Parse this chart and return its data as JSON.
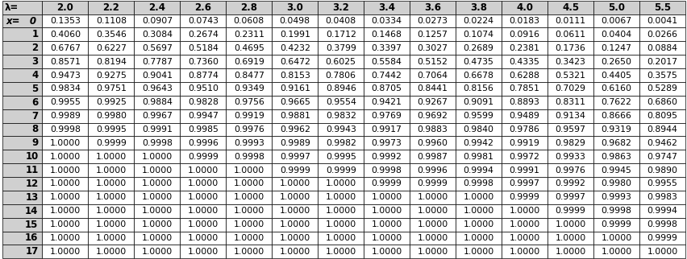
{
  "lambda_values": [
    "2.0",
    "2.2",
    "2.4",
    "2.6",
    "2.8",
    "3.0",
    "3.2",
    "3.4",
    "3.6",
    "3.8",
    "4.0",
    "4.5",
    "5.0",
    "5.5"
  ],
  "x_values": [
    0,
    1,
    2,
    3,
    4,
    5,
    6,
    7,
    8,
    9,
    10,
    11,
    12,
    13,
    14,
    15,
    16,
    17
  ],
  "table_data": [
    [
      "0.1353",
      "0.1108",
      "0.0907",
      "0.0743",
      "0.0608",
      "0.0498",
      "0.0408",
      "0.0334",
      "0.0273",
      "0.0224",
      "0.0183",
      "0.0111",
      "0.0067",
      "0.0041"
    ],
    [
      "0.4060",
      "0.3546",
      "0.3084",
      "0.2674",
      "0.2311",
      "0.1991",
      "0.1712",
      "0.1468",
      "0.1257",
      "0.1074",
      "0.0916",
      "0.0611",
      "0.0404",
      "0.0266"
    ],
    [
      "0.6767",
      "0.6227",
      "0.5697",
      "0.5184",
      "0.4695",
      "0.4232",
      "0.3799",
      "0.3397",
      "0.3027",
      "0.2689",
      "0.2381",
      "0.1736",
      "0.1247",
      "0.0884"
    ],
    [
      "0.8571",
      "0.8194",
      "0.7787",
      "0.7360",
      "0.6919",
      "0.6472",
      "0.6025",
      "0.5584",
      "0.5152",
      "0.4735",
      "0.4335",
      "0.3423",
      "0.2650",
      "0.2017"
    ],
    [
      "0.9473",
      "0.9275",
      "0.9041",
      "0.8774",
      "0.8477",
      "0.8153",
      "0.7806",
      "0.7442",
      "0.7064",
      "0.6678",
      "0.6288",
      "0.5321",
      "0.4405",
      "0.3575"
    ],
    [
      "0.9834",
      "0.9751",
      "0.9643",
      "0.9510",
      "0.9349",
      "0.9161",
      "0.8946",
      "0.8705",
      "0.8441",
      "0.8156",
      "0.7851",
      "0.7029",
      "0.6160",
      "0.5289"
    ],
    [
      "0.9955",
      "0.9925",
      "0.9884",
      "0.9828",
      "0.9756",
      "0.9665",
      "0.9554",
      "0.9421",
      "0.9267",
      "0.9091",
      "0.8893",
      "0.8311",
      "0.7622",
      "0.6860"
    ],
    [
      "0.9989",
      "0.9980",
      "0.9967",
      "0.9947",
      "0.9919",
      "0.9881",
      "0.9832",
      "0.9769",
      "0.9692",
      "0.9599",
      "0.9489",
      "0.9134",
      "0.8666",
      "0.8095"
    ],
    [
      "0.9998",
      "0.9995",
      "0.9991",
      "0.9985",
      "0.9976",
      "0.9962",
      "0.9943",
      "0.9917",
      "0.9883",
      "0.9840",
      "0.9786",
      "0.9597",
      "0.9319",
      "0.8944"
    ],
    [
      "1.0000",
      "0.9999",
      "0.9998",
      "0.9996",
      "0.9993",
      "0.9989",
      "0.9982",
      "0.9973",
      "0.9960",
      "0.9942",
      "0.9919",
      "0.9829",
      "0.9682",
      "0.9462"
    ],
    [
      "1.0000",
      "1.0000",
      "1.0000",
      "0.9999",
      "0.9998",
      "0.9997",
      "0.9995",
      "0.9992",
      "0.9987",
      "0.9981",
      "0.9972",
      "0.9933",
      "0.9863",
      "0.9747"
    ],
    [
      "1.0000",
      "1.0000",
      "1.0000",
      "1.0000",
      "1.0000",
      "0.9999",
      "0.9999",
      "0.9998",
      "0.9996",
      "0.9994",
      "0.9991",
      "0.9976",
      "0.9945",
      "0.9890"
    ],
    [
      "1.0000",
      "1.0000",
      "1.0000",
      "1.0000",
      "1.0000",
      "1.0000",
      "1.0000",
      "0.9999",
      "0.9999",
      "0.9998",
      "0.9997",
      "0.9992",
      "0.9980",
      "0.9955"
    ],
    [
      "1.0000",
      "1.0000",
      "1.0000",
      "1.0000",
      "1.0000",
      "1.0000",
      "1.0000",
      "1.0000",
      "1.0000",
      "1.0000",
      "0.9999",
      "0.9997",
      "0.9993",
      "0.9983"
    ],
    [
      "1.0000",
      "1.0000",
      "1.0000",
      "1.0000",
      "1.0000",
      "1.0000",
      "1.0000",
      "1.0000",
      "1.0000",
      "1.0000",
      "1.0000",
      "0.9999",
      "0.9998",
      "0.9994"
    ],
    [
      "1.0000",
      "1.0000",
      "1.0000",
      "1.0000",
      "1.0000",
      "1.0000",
      "1.0000",
      "1.0000",
      "1.0000",
      "1.0000",
      "1.0000",
      "1.0000",
      "0.9999",
      "0.9998"
    ],
    [
      "1.0000",
      "1.0000",
      "1.0000",
      "1.0000",
      "1.0000",
      "1.0000",
      "1.0000",
      "1.0000",
      "1.0000",
      "1.0000",
      "1.0000",
      "1.0000",
      "1.0000",
      "0.9999"
    ],
    [
      "1.0000",
      "1.0000",
      "1.0000",
      "1.0000",
      "1.0000",
      "1.0000",
      "1.0000",
      "1.0000",
      "1.0000",
      "1.0000",
      "1.0000",
      "1.0000",
      "1.0000",
      "1.0000"
    ]
  ],
  "header_bg": "#d0d0d0",
  "header_text_color": "#000000",
  "row_bg_white": "#ffffff",
  "row_bg_gray": "#e8e8e8",
  "first_col_bg": "#d0d0d0",
  "border_color": "#000000",
  "text_color": "#000000",
  "col_header_label": "λ=",
  "row_header_prefix": "x=",
  "fig_width": 8.53,
  "fig_height": 3.22,
  "dpi": 100,
  "font_size_header": 8.5,
  "font_size_data": 7.8
}
